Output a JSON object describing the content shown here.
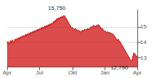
{
  "chart_data": {
    "type": "area",
    "categories": [
      "Apr",
      null,
      null,
      null,
      null,
      null,
      null,
      null,
      null,
      null,
      null,
      null,
      null,
      null,
      null,
      null,
      null,
      null,
      null,
      null,
      null,
      null,
      null,
      null,
      null,
      null,
      null,
      null,
      null,
      null,
      null,
      null,
      null,
      null,
      null,
      null,
      null,
      "Jul",
      null,
      null,
      null,
      null,
      null,
      null,
      null,
      null,
      null,
      null,
      null,
      null,
      null,
      null,
      null,
      null,
      null,
      null,
      null,
      null,
      null,
      null,
      null,
      null,
      null,
      null,
      null,
      null,
      null,
      null,
      null,
      null,
      null,
      null,
      null,
      null,
      null,
      "Okt",
      null,
      null,
      null,
      null,
      null,
      null,
      null,
      null,
      null,
      null,
      null,
      null,
      null,
      null,
      null,
      null,
      null,
      null,
      null,
      null,
      null,
      null,
      null,
      null,
      null,
      null,
      null,
      null,
      null,
      null,
      null,
      null,
      null,
      null,
      null,
      null,
      "Jan",
      null,
      null,
      null,
      null,
      null,
      null,
      null,
      null,
      null,
      null,
      null,
      null,
      null,
      null,
      null,
      null,
      null,
      null,
      null,
      null,
      null,
      null,
      null,
      null,
      null,
      null,
      null,
      null,
      null,
      null,
      null,
      null,
      null,
      null,
      null,
      null,
      "Apr"
    ],
    "values": [
      13.9,
      14.05,
      13.85,
      14.0,
      14.1,
      13.95,
      14.15,
      14.05,
      13.95,
      14.2,
      14.1,
      14.25,
      14.15,
      14.3,
      14.2,
      14.35,
      14.25,
      14.4,
      14.3,
      14.45,
      14.35,
      14.5,
      14.4,
      14.55,
      14.45,
      14.6,
      14.5,
      14.65,
      14.55,
      14.7,
      14.6,
      14.75,
      14.65,
      14.8,
      14.7,
      14.85,
      14.75,
      14.9,
      14.8,
      14.95,
      14.85,
      15.0,
      14.9,
      15.05,
      14.95,
      15.1,
      15.0,
      15.15,
      15.05,
      15.2,
      15.1,
      15.25,
      15.15,
      15.35,
      15.25,
      15.45,
      15.35,
      15.55,
      15.45,
      15.6,
      15.5,
      15.65,
      15.55,
      15.7,
      15.6,
      15.75,
      15.68,
      15.6,
      15.5,
      15.4,
      15.3,
      15.2,
      15.1,
      15.0,
      14.9,
      14.95,
      14.85,
      14.8,
      14.9,
      14.85,
      14.75,
      14.8,
      14.7,
      14.75,
      14.65,
      14.7,
      14.8,
      14.7,
      14.8,
      14.85,
      14.75,
      14.85,
      14.9,
      14.8,
      14.9,
      14.95,
      15.0,
      14.95,
      15.05,
      15.1,
      15.05,
      15.0,
      15.1,
      15.05,
      15.15,
      15.1,
      15.05,
      14.95,
      14.85,
      14.9,
      14.8,
      14.7,
      14.75,
      14.65,
      14.6,
      14.7,
      14.6,
      14.65,
      14.55,
      14.6,
      14.5,
      14.55,
      14.45,
      14.4,
      14.3,
      14.2,
      14.1,
      14.2,
      14.1,
      14.05,
      13.95,
      13.85,
      13.75,
      13.65,
      13.55,
      13.45,
      13.35,
      13.25,
      13.15,
      13.05,
      12.95,
      12.85,
      12.8,
      12.79,
      13.1,
      13.3,
      13.25,
      13.15,
      13.1,
      13.05
    ],
    "color": "#cc0000",
    "ylim": [
      12.4,
      16.1
    ],
    "yticks": [
      13,
      14,
      15
    ],
    "grid": true,
    "annotations": [
      {
        "text": "15,750",
        "y": 15.75
      },
      {
        "text": "12,790",
        "y": 12.79
      }
    ]
  }
}
